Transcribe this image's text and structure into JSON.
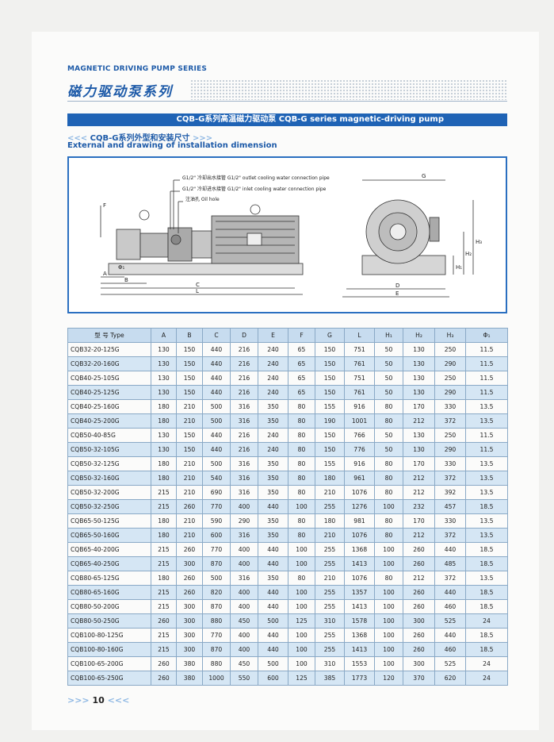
{
  "header": {
    "series": "MAGNETIC DRIVING PUMP SERIES",
    "series_cn": "磁力驱动泵系列"
  },
  "section": {
    "banner": "CQB-G系列高温磁力驱动泵 CQB-G series magnetic-driving pump",
    "chevron_left": "<<<",
    "subtitle_cn": "CQB-G系列外型和安装尺寸",
    "chevron_right": ">>>",
    "subtitle_en": "External and drawing of installation dimension"
  },
  "diagram": {
    "outlet_pipe": "G1/2\" 冷却出水接管 G1/2\" outlet cooling water connection pipe",
    "inlet_pipe": "G1/2\" 冷却进水接管 G1/2\" inlet cooling water connection pipe",
    "oil_hole": "注油孔 Oil hole",
    "dimension_labels": [
      "F",
      "A",
      "Φ₁",
      "B",
      "C",
      "L",
      "G",
      "H₃",
      "H₂",
      "H₁",
      "D",
      "E"
    ]
  },
  "table": {
    "header": [
      "型 号 Type",
      "A",
      "B",
      "C",
      "D",
      "E",
      "F",
      "G",
      "L",
      "H₁",
      "H₂",
      "H₃",
      "Φ₁"
    ],
    "rows": [
      [
        "CQB32-20-125G",
        130,
        150,
        440,
        216,
        240,
        65,
        150,
        751,
        50,
        130,
        250,
        11.5
      ],
      [
        "CQB32-20-160G",
        130,
        150,
        440,
        216,
        240,
        65,
        150,
        761,
        50,
        130,
        290,
        11.5
      ],
      [
        "CQB40-25-105G",
        130,
        150,
        440,
        216,
        240,
        65,
        150,
        751,
        50,
        130,
        250,
        11.5
      ],
      [
        "CQB40-25-125G",
        130,
        150,
        440,
        216,
        240,
        65,
        150,
        761,
        50,
        130,
        290,
        11.5
      ],
      [
        "CQB40-25-160G",
        180,
        210,
        500,
        316,
        350,
        80,
        155,
        916,
        80,
        170,
        330,
        13.5
      ],
      [
        "CQB40-25-200G",
        180,
        210,
        500,
        316,
        350,
        80,
        190,
        1001,
        80,
        212,
        372,
        13.5
      ],
      [
        "CQB50-40-85G",
        130,
        150,
        440,
        216,
        240,
        80,
        150,
        766,
        50,
        130,
        250,
        11.5
      ],
      [
        "CQB50-32-105G",
        130,
        150,
        440,
        216,
        240,
        80,
        150,
        776,
        50,
        130,
        290,
        11.5
      ],
      [
        "CQB50-32-125G",
        180,
        210,
        500,
        316,
        350,
        80,
        155,
        916,
        80,
        170,
        330,
        13.5
      ],
      [
        "CQB50-32-160G",
        180,
        210,
        540,
        316,
        350,
        80,
        180,
        961,
        80,
        212,
        372,
        13.5
      ],
      [
        "CQB50-32-200G",
        215,
        210,
        690,
        316,
        350,
        80,
        210,
        1076,
        80,
        212,
        392,
        13.5
      ],
      [
        "CQB50-32-250G",
        215,
        260,
        770,
        400,
        440,
        100,
        255,
        1276,
        100,
        232,
        457,
        18.5
      ],
      [
        "CQB65-50-125G",
        180,
        210,
        590,
        290,
        350,
        80,
        180,
        981,
        80,
        170,
        330,
        13.5
      ],
      [
        "CQB65-50-160G",
        180,
        210,
        600,
        316,
        350,
        80,
        210,
        1076,
        80,
        212,
        372,
        13.5
      ],
      [
        "CQB65-40-200G",
        215,
        260,
        770,
        400,
        440,
        100,
        255,
        1368,
        100,
        260,
        440,
        18.5
      ],
      [
        "CQB65-40-250G",
        215,
        300,
        870,
        400,
        440,
        100,
        255,
        1413,
        100,
        260,
        485,
        18.5
      ],
      [
        "CQB80-65-125G",
        180,
        260,
        500,
        316,
        350,
        80,
        210,
        1076,
        80,
        212,
        372,
        13.5
      ],
      [
        "CQB80-65-160G",
        215,
        260,
        820,
        400,
        440,
        100,
        255,
        1357,
        100,
        260,
        440,
        18.5
      ],
      [
        "CQB80-50-200G",
        215,
        300,
        870,
        400,
        440,
        100,
        255,
        1413,
        100,
        260,
        460,
        18.5
      ],
      [
        "CQB80-50-250G",
        260,
        300,
        880,
        450,
        500,
        125,
        310,
        1578,
        100,
        300,
        525,
        24
      ],
      [
        "CQB100-80-125G",
        215,
        300,
        770,
        400,
        440,
        100,
        255,
        1368,
        100,
        260,
        440,
        18.5
      ],
      [
        "CQB100-80-160G",
        215,
        300,
        870,
        400,
        440,
        100,
        255,
        1413,
        100,
        260,
        460,
        18.5
      ],
      [
        "CQB100-65-200G",
        260,
        380,
        880,
        450,
        500,
        100,
        310,
        1553,
        100,
        300,
        525,
        24
      ],
      [
        "CQB100-65-250G",
        260,
        380,
        1000,
        550,
        600,
        125,
        385,
        1773,
        120,
        370,
        620,
        24
      ]
    ]
  },
  "footer": {
    "prefix": ">>>",
    "page": "10",
    "suffix": "<<<"
  }
}
